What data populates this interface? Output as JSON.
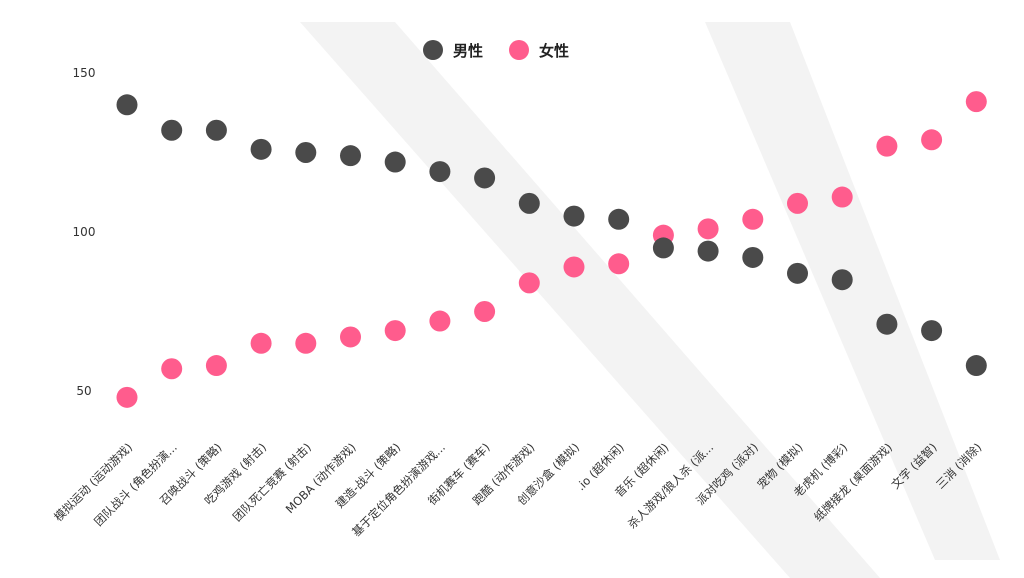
{
  "chart_data": {
    "type": "scatter",
    "title": "",
    "xlabel": "",
    "ylabel": "",
    "ylim": [
      40,
      155
    ],
    "yticks": [
      50,
      100,
      150
    ],
    "grid": false,
    "legend_position": "top-center",
    "categories": [
      "模拟运动 (运动游戏)",
      "团队战斗 (角色扮演...",
      "召唤战斗 (策略)",
      "吃鸡游戏 (射击)",
      "团队死亡竞赛 (射击)",
      "MOBA (动作游戏)",
      "建造-战斗 (策略)",
      "基于定位角色扮演游戏...",
      "街机赛车 (赛车)",
      "跑酷 (动作游戏)",
      "创意沙盒 (模拟)",
      ".io (超休闲)",
      "音乐 (超休闲)",
      "杀人游戏/狼人杀 (派...",
      "派对吃鸡 (派对)",
      "宠物 (模拟)",
      "老虎机 (博彩)",
      "纸牌接龙 (桌面游戏)",
      "文字 (益智)",
      "三消 (消除)"
    ],
    "series": [
      {
        "name": "男性",
        "color": "#4a4a4a",
        "values": [
          140,
          132,
          132,
          126,
          125,
          124,
          122,
          119,
          117,
          109,
          105,
          104,
          95,
          94,
          92,
          87,
          85,
          71,
          69,
          58
        ]
      },
      {
        "name": "女性",
        "color": "#ff5c8d",
        "values": [
          48,
          57,
          58,
          65,
          65,
          67,
          69,
          72,
          75,
          84,
          89,
          90,
          99,
          101,
          104,
          109,
          111,
          127,
          129,
          141
        ]
      }
    ]
  }
}
